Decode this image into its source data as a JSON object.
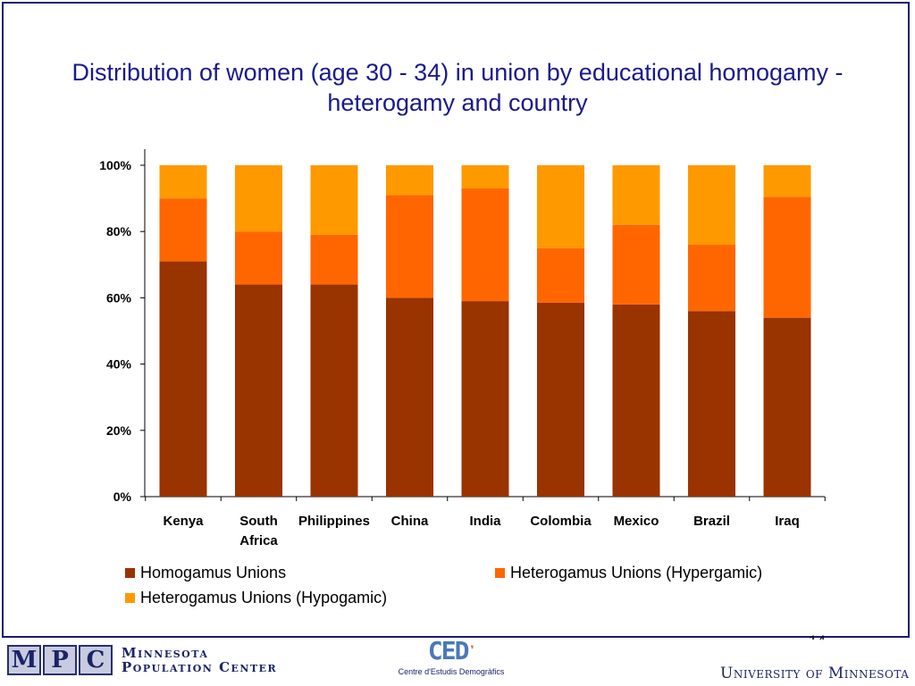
{
  "slide": {
    "title": "Distribution of women (age 30 - 34) in union by educational homogamy - heterogamy and country",
    "page_number": "14"
  },
  "chart_data": {
    "type": "bar",
    "stacked": true,
    "percent_stacked": true,
    "title": "Distribution of women (age 30 - 34) in union by educational homogamy - heterogamy and country",
    "xlabel": "",
    "ylabel": "",
    "ylim": [
      0,
      100
    ],
    "y_ticks": [
      "0%",
      "20%",
      "40%",
      "60%",
      "80%",
      "100%"
    ],
    "categories": [
      [
        "Kenya"
      ],
      [
        "South",
        "Africa"
      ],
      [
        "Philippines"
      ],
      [
        "China"
      ],
      [
        "India"
      ],
      [
        "Colombia"
      ],
      [
        "Mexico"
      ],
      [
        "Brazil"
      ],
      [
        "Iraq"
      ]
    ],
    "series": [
      {
        "name": "Homogamus Unions",
        "color": "#993300",
        "values": [
          71,
          64,
          64,
          60,
          59,
          58.5,
          58,
          56,
          54
        ]
      },
      {
        "name": "Heterogamus Unions (Hypergamic)",
        "color": "#FF6600",
        "values": [
          19,
          16,
          15,
          31,
          34,
          16.5,
          24,
          20,
          36.5
        ]
      },
      {
        "name": "Heterogamus Unions (Hypogamic)",
        "color": "#FF9900",
        "values": [
          10,
          20,
          21,
          9,
          7,
          25,
          18,
          24,
          9.5
        ]
      }
    ],
    "legend_position": "bottom",
    "grid": false
  },
  "footer": {
    "mpc": {
      "letters": [
        "M",
        "P",
        "C"
      ],
      "line1": "Minnesota",
      "line2": "Population Center"
    },
    "ced": {
      "mark": "CED",
      "text": "Centre d'Estudis Demogràfics"
    },
    "umn": {
      "text": "University of Minnesota"
    }
  }
}
